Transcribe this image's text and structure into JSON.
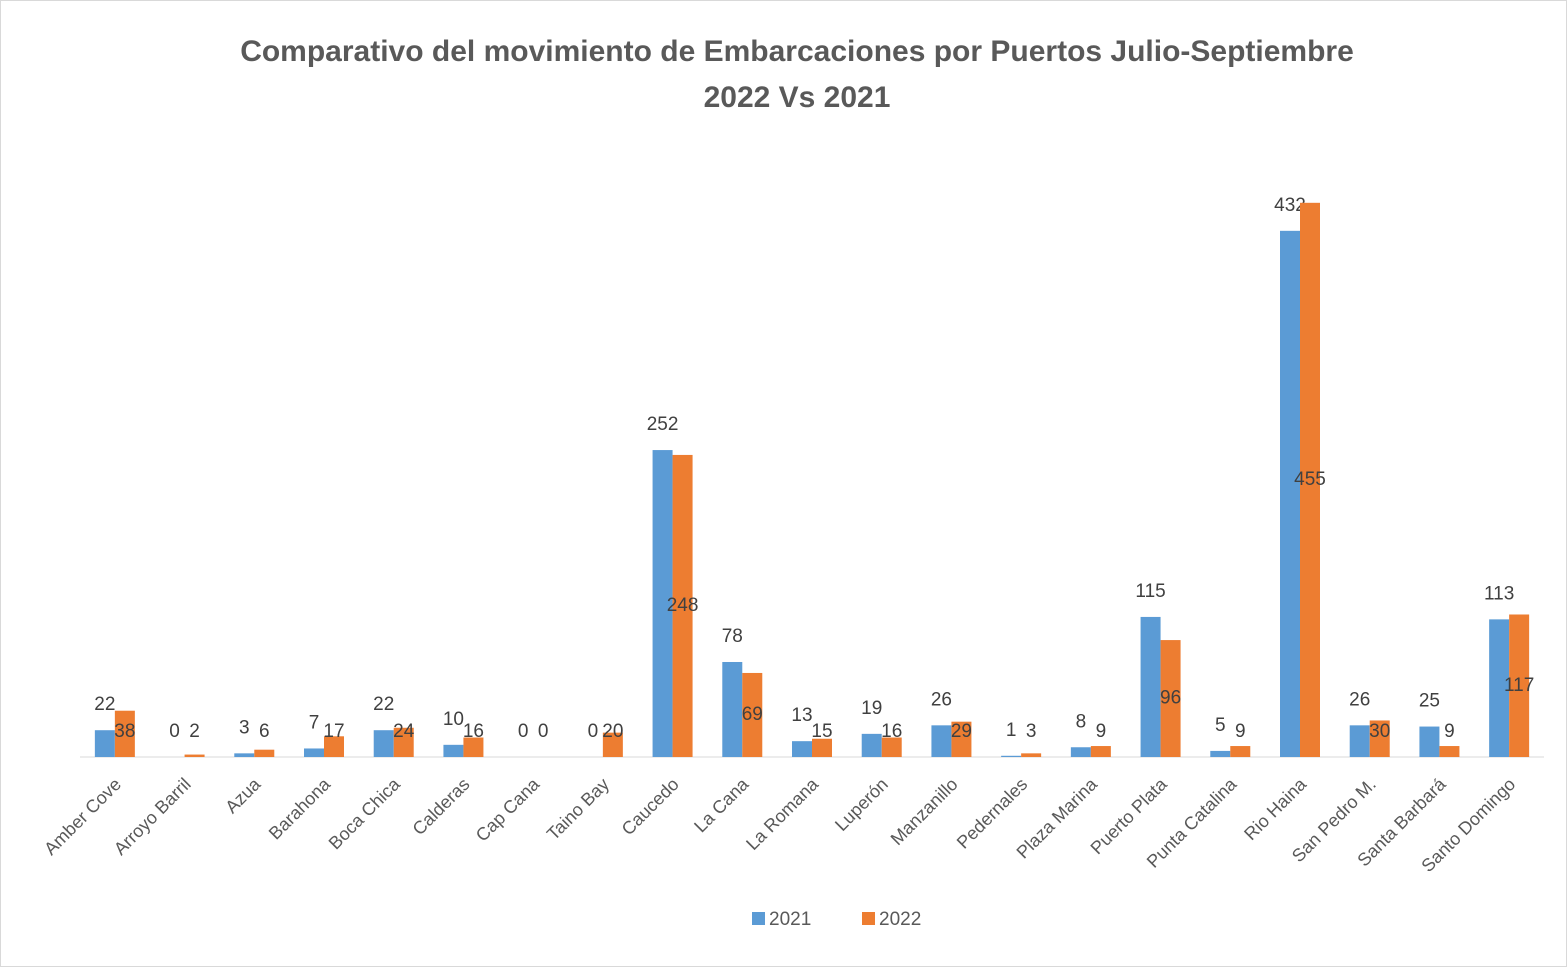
{
  "chart_data": {
    "type": "bar",
    "title": [
      "Comparativo del movimiento de Embarcaciones  por Puertos   Julio-Septiembre",
      "2022 Vs 2021"
    ],
    "categories": [
      "Amber Cove",
      "Arroyo Barril",
      "Azua",
      "Barahona",
      "Boca Chica",
      "Calderas",
      "Cap Cana",
      "Taino Bay",
      "Caucedo",
      "La Cana",
      "La Romana",
      "Luperón",
      "Manzanillo",
      "Pedernales",
      "Plaza Marina",
      "Puerto Plata",
      "Punta Catalina",
      "Rio Haina",
      "San Pedro M.",
      "Santa Barbará",
      "Santo Domingo"
    ],
    "series": [
      {
        "name": "2021",
        "color": "#5b9bd5",
        "values": [
          22,
          0,
          3,
          7,
          22,
          10,
          0,
          0,
          252,
          78,
          13,
          19,
          26,
          1,
          8,
          115,
          5,
          432,
          26,
          25,
          113
        ]
      },
      {
        "name": "2022",
        "color": "#ed7d31",
        "values": [
          38,
          2,
          6,
          17,
          24,
          16,
          0,
          20,
          248,
          69,
          15,
          16,
          29,
          3,
          9,
          96,
          9,
          455,
          30,
          9,
          117
        ]
      }
    ],
    "legend": "bottom"
  }
}
